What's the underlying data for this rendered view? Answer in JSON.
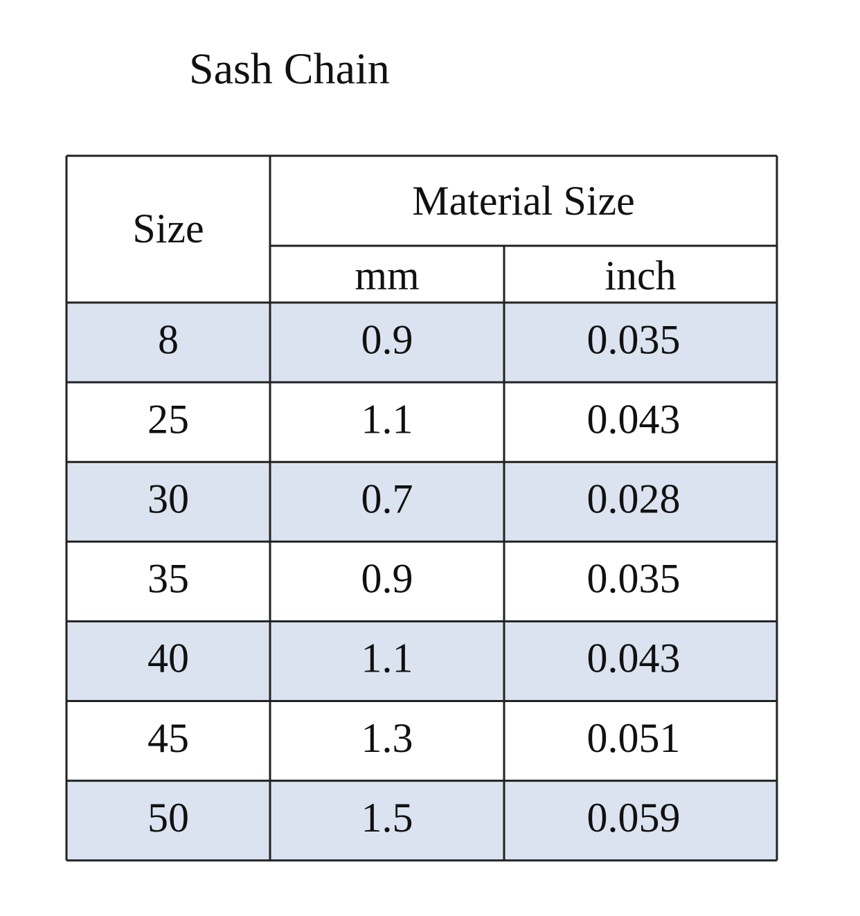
{
  "header": {
    "title": "Sash Chain"
  },
  "table": {
    "columns": {
      "size": "Size",
      "group": "Material Size",
      "mm": "mm",
      "inch": "inch"
    },
    "rows": [
      [
        "8",
        "0.9",
        "0.035"
      ],
      [
        "25",
        "1.1",
        "0.043"
      ],
      [
        "30",
        "0.7",
        "0.028"
      ],
      [
        "35",
        "0.9",
        "0.035"
      ],
      [
        "40",
        "1.1",
        "0.043"
      ],
      [
        "45",
        "1.3",
        "0.051"
      ],
      [
        "50",
        "1.5",
        "0.059"
      ]
    ]
  }
}
